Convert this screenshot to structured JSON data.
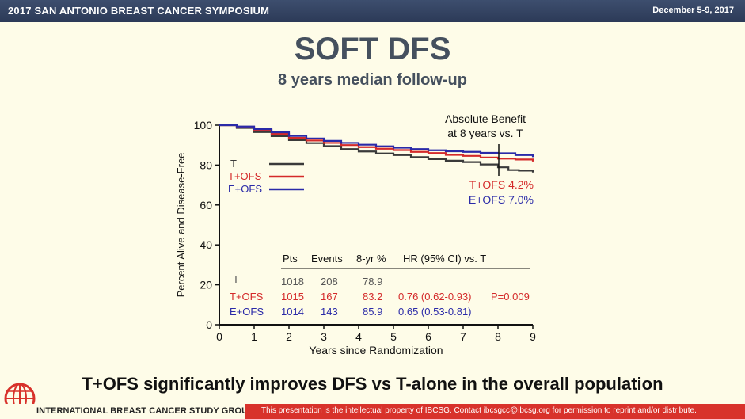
{
  "header": {
    "event": "2017 SAN ANTONIO BREAST CANCER SYMPOSIUM",
    "dates": "December 5-9, 2017"
  },
  "slide": {
    "title": "SOFT DFS",
    "subtitle": "8 years median follow-up",
    "conclusion": "T+OFS significantly improves DFS vs T-alone in the overall population"
  },
  "annotation": {
    "line1": "Absolute Benefit",
    "line2": "at 8 years vs. T",
    "tofs": "T+OFS 4.2%",
    "eofs": "E+OFS 7.0%"
  },
  "table": {
    "headers": [
      "Pts",
      "Events",
      "8-yr %",
      "HR (95% CI) vs. T"
    ],
    "rows": [
      {
        "arm": "T",
        "pts": "1018",
        "events": "208",
        "pct": "78.9",
        "hr": "",
        "p": ""
      },
      {
        "arm": "T+OFS",
        "pts": "1015",
        "events": "167",
        "pct": "83.2",
        "hr": "0.76 (0.62-0.93)",
        "p": "P=0.009"
      },
      {
        "arm": "E+OFS",
        "pts": "1014",
        "events": "143",
        "pct": "85.9",
        "hr": "0.65 (0.53-0.81)",
        "p": ""
      }
    ]
  },
  "footer": {
    "org": "INTERNATIONAL BREAST CANCER STUDY GROUP",
    "notice": "This presentation is the intellectual property of IBCSG. Contact ibcsgcc@ibcsg.org for permission to reprint and/or distribute."
  },
  "colors": {
    "T": "#3a3a3a",
    "T+OFS": "#d42a2a",
    "E+OFS": "#2a2aa8",
    "header_bg": "#34445f",
    "footer_red": "#d8322b"
  },
  "chart_data": {
    "type": "line",
    "xlabel": "Years since Randomization",
    "ylabel": "Percent Alive and Disease-Free",
    "xlim": [
      0,
      9
    ],
    "ylim": [
      0,
      100
    ],
    "xticks": [
      0,
      1,
      2,
      3,
      4,
      5,
      6,
      7,
      8,
      9
    ],
    "yticks": [
      0,
      20,
      40,
      60,
      80,
      100
    ],
    "legend": "top-left",
    "series": [
      {
        "name": "T",
        "color": "#3a3a3a",
        "x": [
          0,
          0.5,
          1,
          1.5,
          2,
          2.5,
          3,
          3.5,
          4,
          4.5,
          5,
          5.5,
          6,
          6.5,
          7,
          7.5,
          8,
          8.3,
          8.6,
          9
        ],
        "y": [
          100,
          98.6,
          96.5,
          94.5,
          92.5,
          91,
          89.5,
          88,
          86.8,
          85.8,
          85,
          84,
          83,
          82.2,
          81.5,
          80.3,
          78.9,
          77.5,
          77.2,
          76.3
        ]
      },
      {
        "name": "T+OFS",
        "color": "#d42a2a",
        "x": [
          0,
          0.5,
          1,
          1.5,
          2,
          2.5,
          3,
          3.5,
          4,
          4.5,
          5,
          5.5,
          6,
          6.5,
          7,
          7.5,
          8,
          8.5,
          9
        ],
        "y": [
          100,
          99.2,
          97.6,
          95.6,
          93.6,
          92.3,
          91.1,
          90,
          89,
          88.2,
          87.5,
          86.6,
          86,
          85.1,
          84.6,
          83.8,
          83.2,
          82.8,
          81.8
        ]
      },
      {
        "name": "E+OFS",
        "color": "#2a2aa8",
        "x": [
          0,
          0.5,
          1,
          1.5,
          2,
          2.5,
          3,
          3.5,
          4,
          4.5,
          5,
          5.5,
          6,
          6.5,
          7,
          7.5,
          8,
          8.5,
          9
        ],
        "y": [
          100,
          99.3,
          98,
          96.4,
          94.6,
          93.3,
          92.1,
          91.1,
          90.2,
          89.4,
          88.7,
          88,
          87.4,
          86.9,
          86.6,
          86.1,
          85.9,
          85,
          84
        ]
      }
    ]
  }
}
